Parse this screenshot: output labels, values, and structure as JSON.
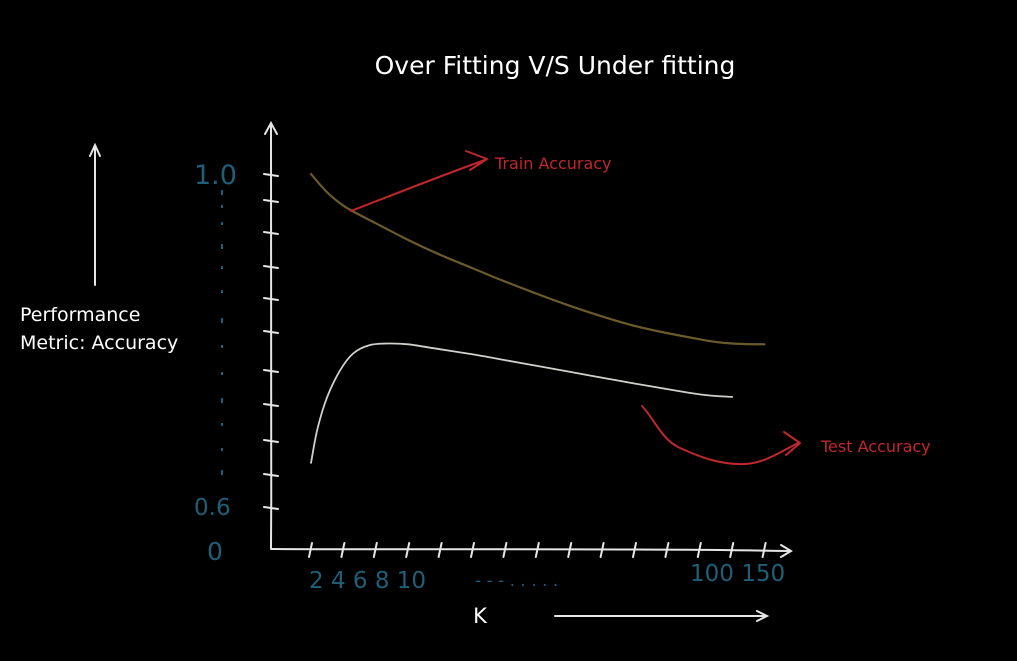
{
  "colors": {
    "background": "#000000",
    "text": "#ffffff",
    "axis": "#e6e6e6",
    "tick_label": "#1f5f78",
    "train_line": "#6a5a2c",
    "test_line": "#d0d0cc",
    "annotation": "#c0272d"
  },
  "chart_data": {
    "type": "line",
    "title": "Over Fitting  V/S Under fitting",
    "ylabel_lines": [
      "Performance",
      "Metric: Accuracy"
    ],
    "xlabel": "K",
    "y_tick_labels": {
      "top": "1.0",
      "bottom_upper": "0.6",
      "origin": "0"
    },
    "x_tick_labels": {
      "left": "2 4 6 8 10",
      "dots": "- - -   . . . . .",
      "right": "100 150"
    },
    "series": [
      {
        "key": "train",
        "name": "Train Accuracy",
        "x_index": [
          0,
          0.5,
          1,
          1.5,
          2,
          3,
          4,
          5,
          6,
          8,
          10,
          12,
          13,
          14
        ],
        "y": [
          1.0,
          0.978,
          0.962,
          0.951,
          0.941,
          0.921,
          0.903,
          0.887,
          0.871,
          0.842,
          0.818,
          0.802,
          0.797,
          0.796
        ]
      },
      {
        "key": "test",
        "name": "Test Accuracy",
        "x_index": [
          0,
          0.2,
          0.5,
          0.9,
          1.3,
          1.8,
          2.4,
          3,
          4,
          5,
          6,
          8,
          10,
          12,
          13
        ],
        "y": [
          0.654,
          0.695,
          0.733,
          0.765,
          0.785,
          0.795,
          0.797,
          0.796,
          0.79,
          0.784,
          0.777,
          0.763,
          0.749,
          0.736,
          0.733
        ]
      }
    ]
  }
}
